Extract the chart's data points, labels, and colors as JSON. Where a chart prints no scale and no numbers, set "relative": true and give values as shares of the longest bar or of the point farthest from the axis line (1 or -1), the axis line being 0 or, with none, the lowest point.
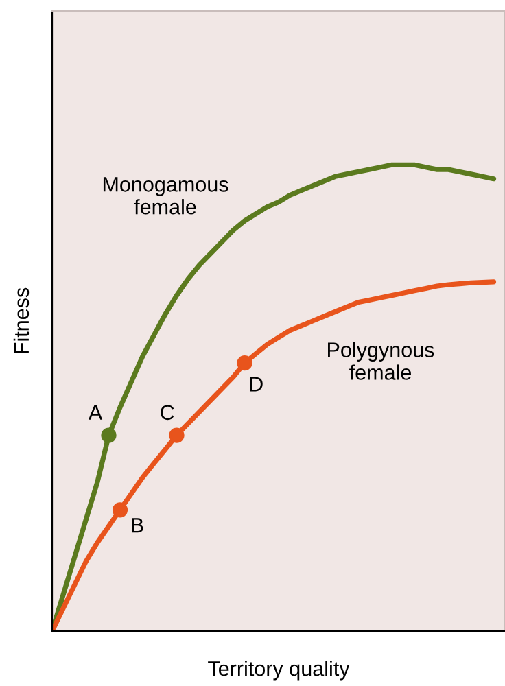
{
  "chart_data": {
    "type": "line",
    "relative": true,
    "xlabel": "Territory quality",
    "ylabel": "Fitness",
    "legend": false,
    "categories": [
      null,
      null,
      null,
      null,
      null,
      null,
      null,
      null,
      null,
      null,
      null,
      null,
      null,
      null,
      null,
      null,
      null,
      null,
      null,
      null,
      null,
      null,
      null,
      null,
      null,
      null,
      null,
      null,
      null,
      null,
      null,
      null,
      null,
      null,
      null,
      null,
      null,
      null,
      null,
      null
    ],
    "series": [
      {
        "name": "Monogamous female",
        "color": "#5b7a1e",
        "values": [
          0,
          0.08,
          0.16,
          0.24,
          0.32,
          0.42,
          0.48,
          0.535,
          0.59,
          0.635,
          0.68,
          0.72,
          0.755,
          0.785,
          0.81,
          0.835,
          0.86,
          0.88,
          0.895,
          0.91,
          0.92,
          0.935,
          0.945,
          0.955,
          0.965,
          0.975,
          0.98,
          0.985,
          0.99,
          0.995,
          1,
          1,
          1,
          0.995,
          0.99,
          0.99,
          0.985,
          0.98,
          0.975,
          0.97
        ]
      },
      {
        "name": "Polygynous female",
        "color": "#e8541c",
        "values": [
          0,
          0.05,
          0.1,
          0.15,
          0.19,
          0.225,
          0.26,
          0.295,
          0.33,
          0.36,
          0.39,
          0.42,
          0.445,
          0.47,
          0.495,
          0.52,
          0.545,
          0.575,
          0.595,
          0.615,
          0.63,
          0.645,
          0.655,
          0.665,
          0.675,
          0.685,
          0.695,
          0.705,
          0.71,
          0.715,
          0.72,
          0.725,
          0.73,
          0.735,
          0.74,
          0.743,
          0.745,
          0.747,
          0.748,
          0.749
        ]
      },
      {
        "marker": "circle",
        "color": "#5b7a1e",
        "values": [
          null,
          null,
          null,
          null,
          null,
          0.42,
          null,
          null,
          null,
          null,
          null,
          null,
          null,
          null,
          null,
          null,
          null,
          null,
          null,
          null,
          null,
          null,
          null,
          null,
          null,
          null,
          null,
          null,
          null,
          null,
          null,
          null,
          null,
          null,
          null,
          null,
          null,
          null,
          null,
          null
        ]
      },
      {
        "marker": "circle",
        "color": "#e8541c",
        "values": [
          null,
          null,
          null,
          null,
          null,
          null,
          0.26,
          null,
          null,
          null,
          null,
          null,
          null,
          null,
          null,
          null,
          null,
          null,
          null,
          null,
          null,
          null,
          null,
          null,
          null,
          null,
          null,
          null,
          null,
          null,
          null,
          null,
          null,
          null,
          null,
          null,
          null,
          null,
          null,
          null
        ]
      },
      {
        "marker": "circle",
        "color": "#e8541c",
        "values": [
          null,
          null,
          null,
          null,
          null,
          null,
          null,
          null,
          null,
          null,
          null,
          0.42,
          null,
          null,
          null,
          null,
          null,
          null,
          null,
          null,
          null,
          null,
          null,
          null,
          null,
          null,
          null,
          null,
          null,
          null,
          null,
          null,
          null,
          null,
          null,
          null,
          null,
          null,
          null,
          null
        ]
      },
      {
        "marker": "circle",
        "color": "#e8541c",
        "values": [
          null,
          null,
          null,
          null,
          null,
          null,
          null,
          null,
          null,
          null,
          null,
          null,
          null,
          null,
          null,
          null,
          null,
          0.575,
          null,
          null,
          null,
          null,
          null,
          null,
          null,
          null,
          null,
          null,
          null,
          null,
          null,
          null,
          null,
          null,
          null,
          null,
          null,
          null,
          null,
          null
        ]
      }
    ],
    "annotations": [
      "A",
      "B",
      "C",
      "D"
    ]
  }
}
